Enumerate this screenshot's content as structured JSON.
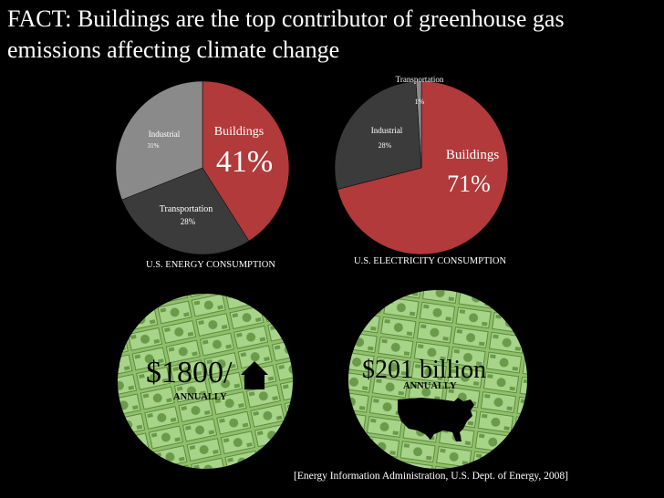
{
  "title": "FACT: Buildings are the top contributor of greenhouse gas emissions affecting climate change",
  "chart_data": [
    {
      "type": "pie",
      "title": "U.S. ENERGY CONSUMPTION",
      "slices": [
        {
          "label": "Buildings",
          "value": 41,
          "value_label": "41%",
          "color": "#b23a3a"
        },
        {
          "label": "Transportation",
          "value": 28,
          "value_label": "28%",
          "color": "#3b3b3b"
        },
        {
          "label": "Industrial",
          "value": 31,
          "value_label": "31%",
          "color": "#8a8a8a"
        }
      ]
    },
    {
      "type": "pie",
      "title": "U.S. ELECTRICITY CONSUMPTION",
      "slices": [
        {
          "label": "Buildings",
          "value": 71,
          "value_label": "71%",
          "color": "#b23a3a"
        },
        {
          "label": "Industrial",
          "value": 28,
          "value_label": "28%",
          "color": "#3b3b3b"
        },
        {
          "label": "Transportation",
          "value": 1,
          "value_label": "1%",
          "color": "#8a8a8a"
        }
      ]
    }
  ],
  "costs": {
    "home": {
      "amount": "$1800/",
      "period": "ANNUALLY"
    },
    "usa": {
      "amount": "$201 billion",
      "period": "ANNUALLY"
    }
  },
  "source": "[Energy Information Administration, U.S. Dept. of Energy, 2008]"
}
